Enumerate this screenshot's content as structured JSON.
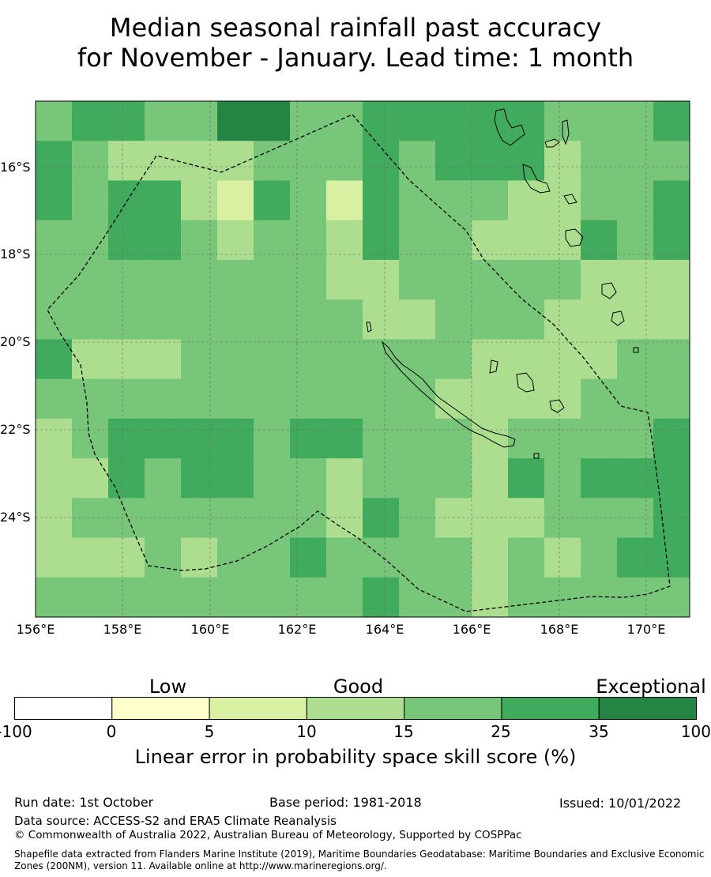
{
  "title": {
    "line1": "Median seasonal rainfall past accuracy",
    "line2": "for November - January. Lead time: 1 month"
  },
  "map": {
    "lat_labels": [
      "16°S",
      "18°S",
      "20°S",
      "22°S",
      "24°S"
    ],
    "lon_labels": [
      "156°E",
      "158°E",
      "160°E",
      "162°E",
      "164°E",
      "166°E",
      "168°E",
      "170°E"
    ],
    "frame_color": "#000000"
  },
  "legend": {
    "categories": [
      "Low",
      "Good",
      "Exceptional"
    ],
    "ticks": [
      "-100",
      "0",
      "5",
      "10",
      "15",
      "25",
      "35",
      "100"
    ],
    "colors": [
      "#ffffff",
      "#ffffcc",
      "#d9f0a3",
      "#addd8e",
      "#78c679",
      "#41ab5d",
      "#238443"
    ],
    "title": "Linear error in probability space skill score (%)"
  },
  "footer": {
    "run_date": "Run date: 1st October",
    "base_period": "Base period: 1981-2018",
    "issued": "Issued: 10/01/2022",
    "data_source": "Data source: ACCESS-S2 and ERA5 Climate Reanalysis",
    "copyright": "© Commonwealth of Australia 2022, Australian Bureau of Meteorology, Supported by COSPPac",
    "shapefile_line1": "Shapefile data extracted from Flanders Marine Institute (2019), Maritime Boundaries Geodatabase: Maritime Boundaries and Exclusive Economic",
    "shapefile_line2": "Zones (200NM), version 11. Available online at http://www.marineregions.org/."
  }
}
